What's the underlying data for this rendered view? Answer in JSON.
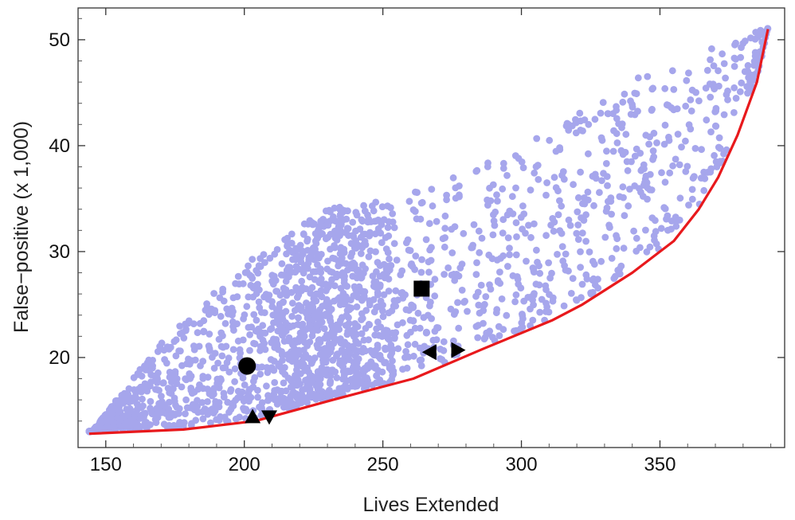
{
  "chart_data": {
    "type": "scatter",
    "xlabel": "Lives Extended",
    "ylabel": "False−positive (x 1,000)",
    "xlim": [
      140,
      395
    ],
    "ylim": [
      11.5,
      53
    ],
    "xticks": [
      150,
      200,
      250,
      300,
      350
    ],
    "yticks": [
      20,
      30,
      40,
      50
    ],
    "colors": {
      "scatter": "#a6a6ec",
      "frontier": "#e8191c",
      "markers": "#000000",
      "background": "#ffffff"
    },
    "frontier": {
      "x": [
        144,
        178,
        204,
        232,
        261,
        286,
        311,
        322,
        340,
        355,
        364,
        371,
        378,
        385,
        389
      ],
      "y": [
        12.8,
        13.2,
        14.0,
        16.0,
        18.0,
        20.8,
        23.5,
        25.0,
        28.0,
        31.0,
        34.0,
        37.0,
        41.0,
        46.0,
        51.0
      ]
    },
    "highlighted_points": [
      {
        "shape": "circle",
        "x": 201,
        "y": 19.2
      },
      {
        "shape": "square",
        "x": 264,
        "y": 26.5
      },
      {
        "shape": "triangle-up",
        "x": 203,
        "y": 14.4
      },
      {
        "shape": "triangle-down",
        "x": 209,
        "y": 14.4
      },
      {
        "shape": "triangle-left",
        "x": 267,
        "y": 20.5
      },
      {
        "shape": "triangle-right",
        "x": 277,
        "y": 20.7
      }
    ],
    "scatter_upper_envelope": {
      "x": [
        145,
        170,
        200,
        230,
        250,
        270,
        300,
        320,
        340,
        355,
        375,
        389
      ],
      "y": [
        13.0,
        21.5,
        29.0,
        34.0,
        35.0,
        36.5,
        40.0,
        43.0,
        46.0,
        49.0,
        50.5,
        51.0
      ]
    },
    "scatter_count": 2200
  }
}
